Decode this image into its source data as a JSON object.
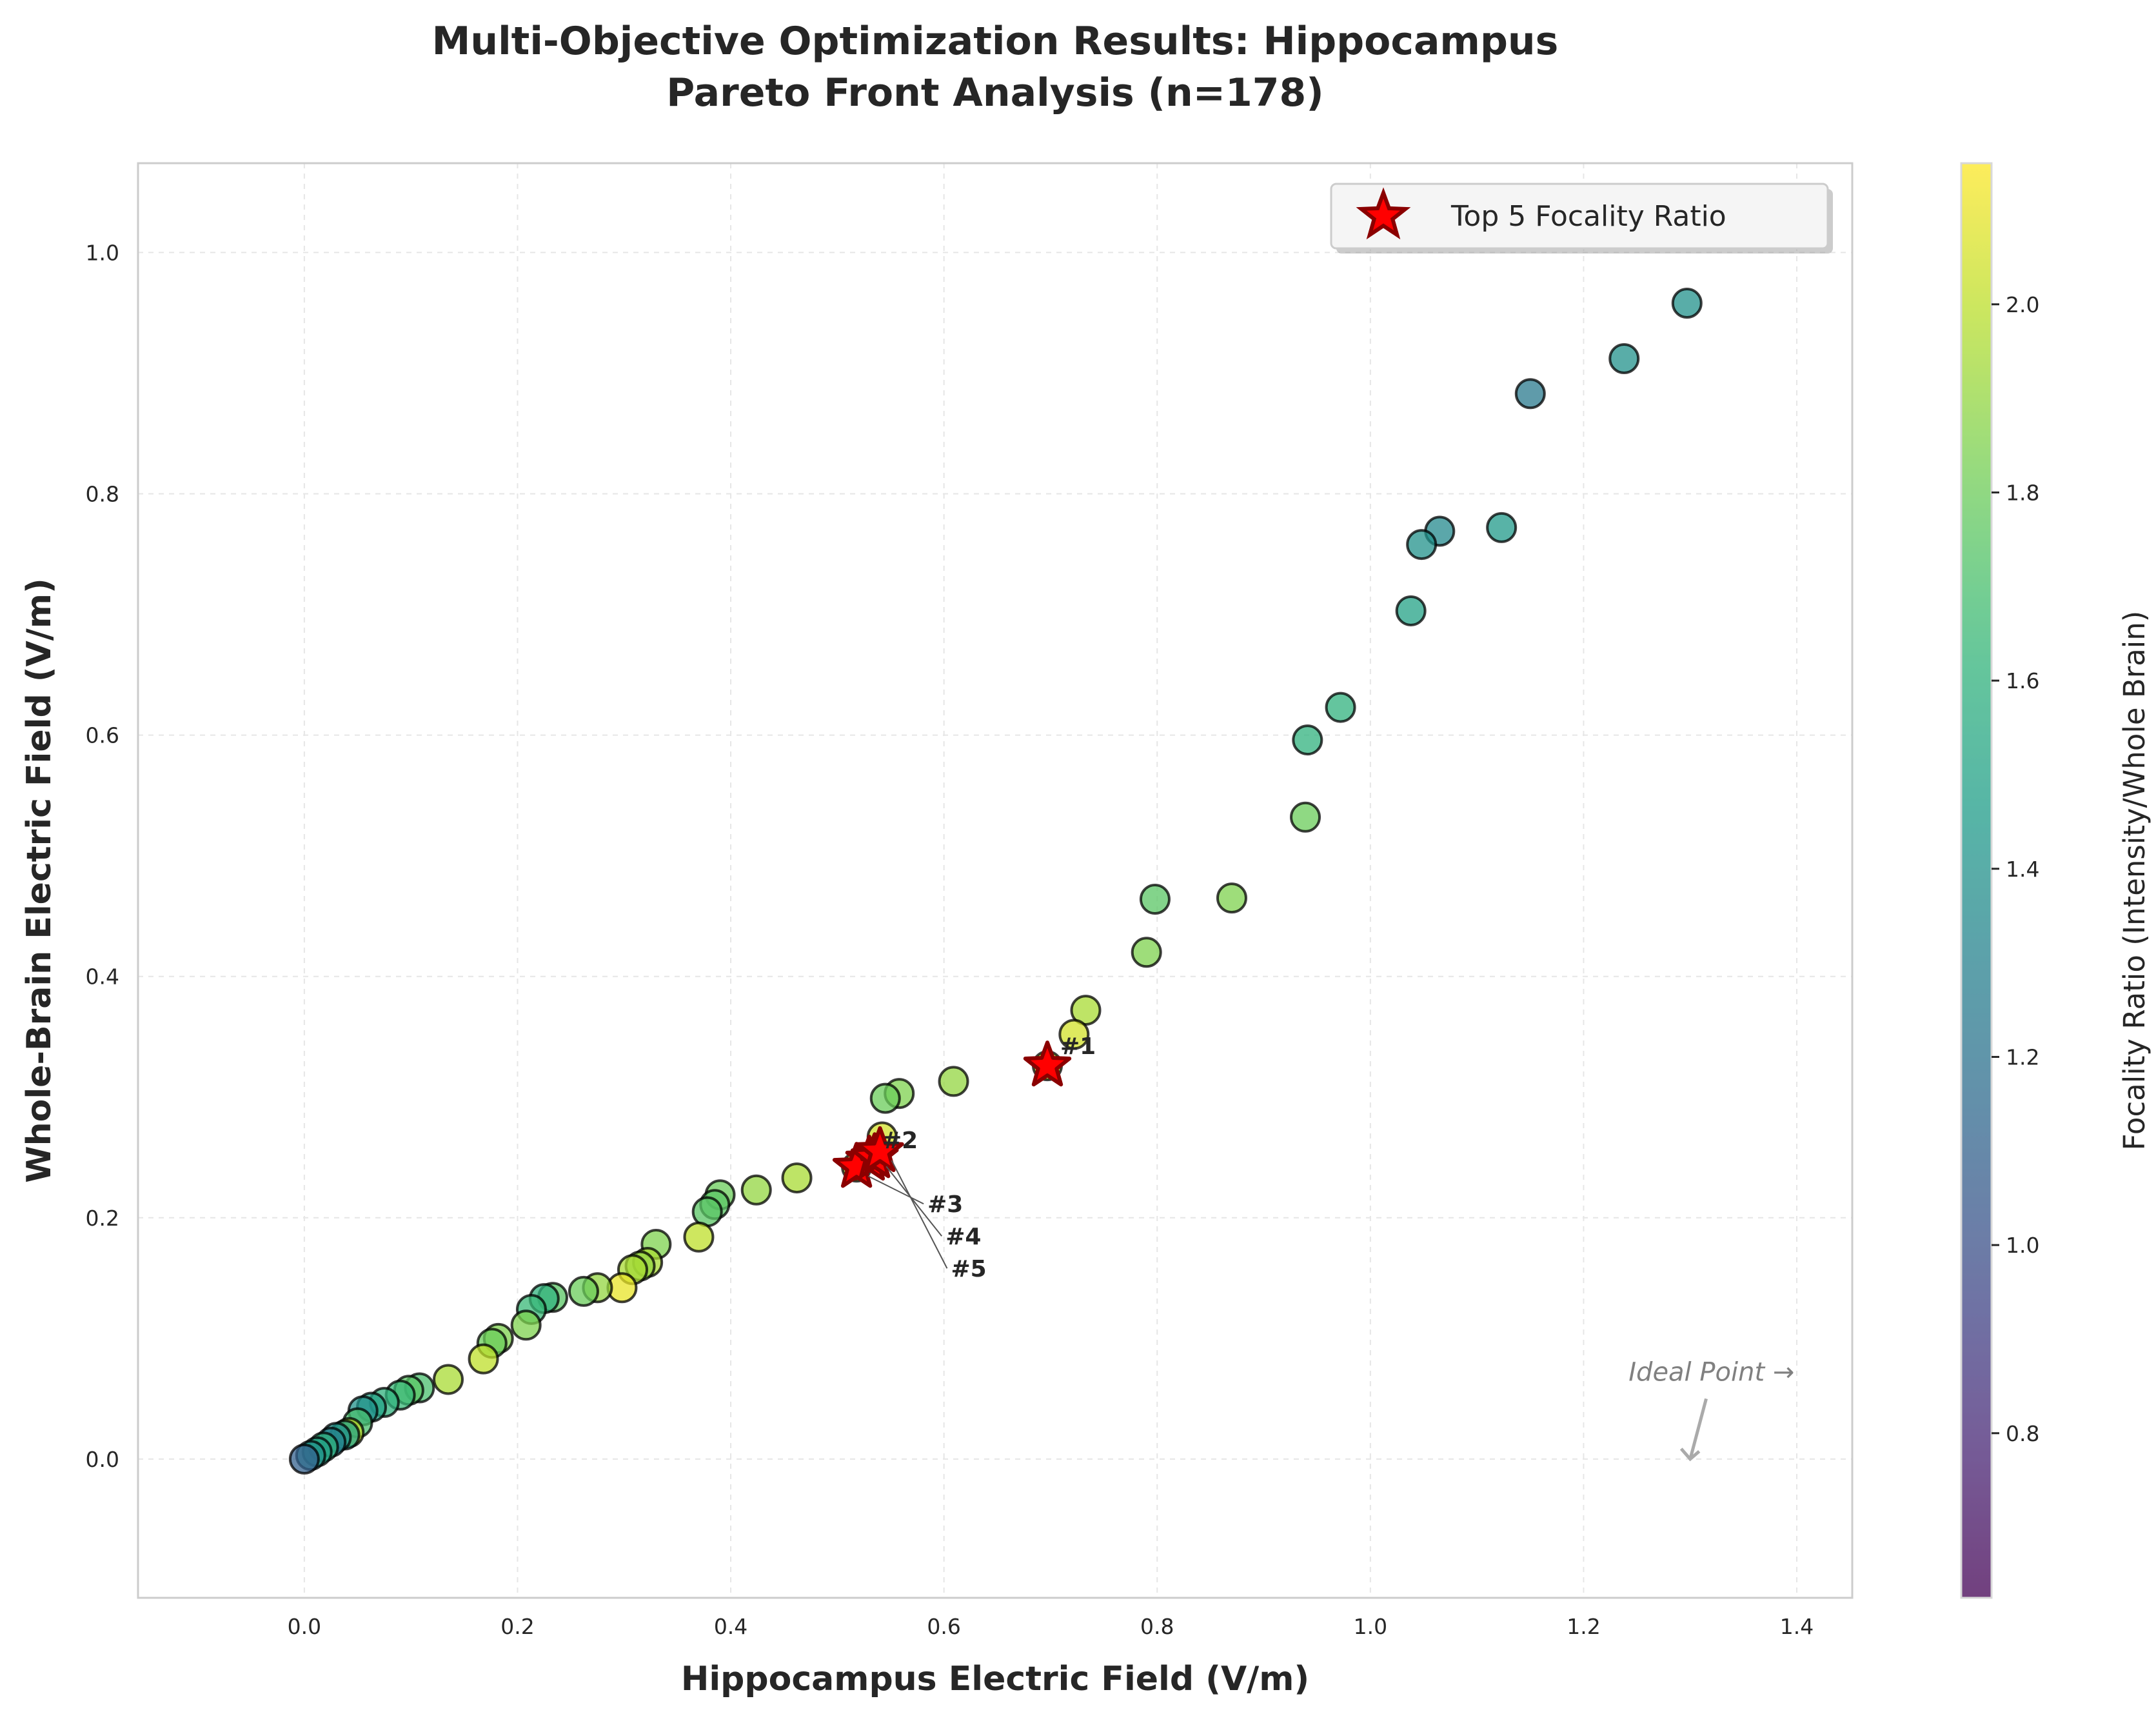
{
  "chart_data": {
    "type": "scatter",
    "title": [
      "Multi-Objective Optimization Results: Hippocampus",
      "Pareto Front Analysis (n=178)"
    ],
    "xlabel": "Hippocampus Electric Field (V/m)",
    "ylabel": "Whole-Brain Electric Field (V/m)",
    "xlim": [
      -0.156,
      1.452
    ],
    "ylim": [
      -0.115,
      1.074
    ],
    "xticks": [
      "0.0",
      "0.2",
      "0.4",
      "0.6",
      "0.8",
      "1.0",
      "1.2",
      "1.4"
    ],
    "yticks": [
      "0.0",
      "0.2",
      "0.4",
      "0.6",
      "0.8",
      "1.0"
    ],
    "grid": true,
    "colorbar": {
      "label": "Focality Ratio (Intensity/Whole Brain)",
      "range": [
        0.625,
        2.15
      ],
      "ticks": [
        "0.8",
        "1.0",
        "1.2",
        "1.4",
        "1.6",
        "1.8",
        "2.0"
      ],
      "colormap": "viridis"
    },
    "legend": {
      "placement": "top-right",
      "entries": [
        "Top 5 Focality Ratio"
      ]
    },
    "points": [
      [
        1.297,
        0.958,
        1.4
      ],
      [
        1.238,
        0.912,
        1.4
      ],
      [
        1.15,
        0.883,
        1.25
      ],
      [
        1.065,
        0.769,
        1.35
      ],
      [
        1.048,
        0.758,
        1.4
      ],
      [
        1.123,
        0.772,
        1.45
      ],
      [
        1.038,
        0.703,
        1.5
      ],
      [
        0.972,
        0.623,
        1.6
      ],
      [
        0.941,
        0.596,
        1.6
      ],
      [
        0.939,
        0.532,
        1.8
      ],
      [
        0.798,
        0.464,
        1.75
      ],
      [
        0.87,
        0.465,
        1.85
      ],
      [
        0.79,
        0.42,
        1.85
      ],
      [
        0.733,
        0.372,
        1.95
      ],
      [
        0.722,
        0.352,
        2.05
      ],
      [
        0.697,
        0.326,
        2.0
      ],
      [
        0.609,
        0.313,
        1.9
      ],
      [
        0.558,
        0.303,
        1.85
      ],
      [
        0.545,
        0.299,
        1.8
      ],
      [
        0.542,
        0.267,
        2.05
      ],
      [
        0.535,
        0.25,
        2.0
      ],
      [
        0.518,
        0.242,
        2.0
      ],
      [
        0.462,
        0.233,
        1.95
      ],
      [
        0.424,
        0.223,
        1.9
      ],
      [
        0.39,
        0.219,
        1.8
      ],
      [
        0.385,
        0.211,
        1.75
      ],
      [
        0.378,
        0.205,
        1.75
      ],
      [
        0.37,
        0.184,
        2.0
      ],
      [
        0.33,
        0.178,
        1.85
      ],
      [
        0.322,
        0.163,
        1.95
      ],
      [
        0.315,
        0.16,
        1.9
      ],
      [
        0.308,
        0.157,
        1.95
      ],
      [
        0.298,
        0.142,
        2.1
      ],
      [
        0.275,
        0.142,
        1.9
      ],
      [
        0.262,
        0.139,
        1.8
      ],
      [
        0.233,
        0.134,
        1.75
      ],
      [
        0.225,
        0.133,
        1.6
      ],
      [
        0.213,
        0.124,
        1.65
      ],
      [
        0.208,
        0.111,
        1.85
      ],
      [
        0.182,
        0.1,
        1.85
      ],
      [
        0.176,
        0.096,
        1.8
      ],
      [
        0.168,
        0.083,
        2.0
      ],
      [
        0.135,
        0.066,
        1.95
      ],
      [
        0.108,
        0.059,
        1.7
      ],
      [
        0.098,
        0.057,
        1.75
      ],
      [
        0.09,
        0.053,
        1.65
      ],
      [
        0.075,
        0.047,
        1.6
      ],
      [
        0.063,
        0.043,
        1.5
      ],
      [
        0.055,
        0.04,
        1.4
      ],
      [
        0.05,
        0.03,
        1.7
      ],
      [
        0.042,
        0.022,
        2.0
      ],
      [
        0.038,
        0.02,
        1.5
      ],
      [
        0.03,
        0.018,
        1.4
      ],
      [
        0.025,
        0.014,
        1.3
      ],
      [
        0.018,
        0.01,
        1.6
      ],
      [
        0.012,
        0.006,
        1.5
      ],
      [
        0.006,
        0.003,
        1.4
      ],
      [
        0.0,
        0.0,
        1.1
      ]
    ],
    "top5": [
      {
        "label": "#1",
        "x": 0.697,
        "y": 0.326
      },
      {
        "label": "#2",
        "x": 0.53,
        "y": 0.248
      },
      {
        "label": "#3",
        "x": 0.518,
        "y": 0.242
      },
      {
        "label": "#4",
        "x": 0.535,
        "y": 0.25
      },
      {
        "label": "#5",
        "x": 0.54,
        "y": 0.255
      }
    ],
    "top5_color": "#ff0000",
    "top5_edge": "#8b0000",
    "annotation": {
      "text": "Ideal Point →",
      "text_xy": [
        1.32,
        0.065
      ],
      "arrow_from": [
        1.315,
        0.05
      ],
      "arrow_to": [
        1.3,
        0.0
      ]
    }
  }
}
